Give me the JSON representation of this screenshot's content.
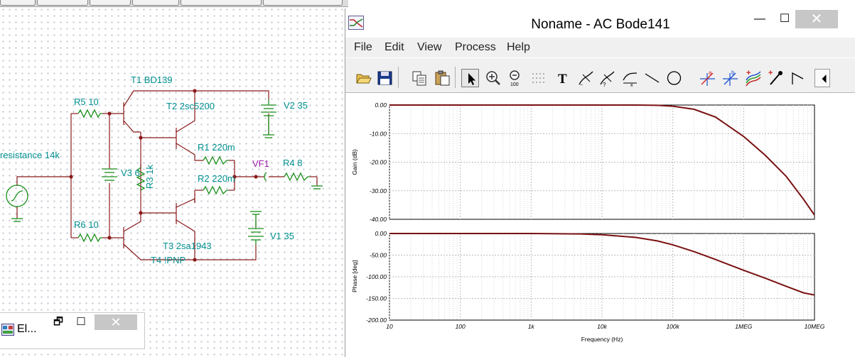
{
  "schematic": {
    "labels": {
      "t1": "T1 BD139",
      "t2": "T2 2sc5200",
      "t3": "T3 2sa1943",
      "t4": "T4 !PNP",
      "r1": "R1 220m",
      "r2": "R2 220m",
      "r3": "R3 1k",
      "r4": "R4 8",
      "r5": "R5 10",
      "r6": "R6 10",
      "v1": "V1 35",
      "v2": "V2 35",
      "v3": "V3 6",
      "vf1": "VF1",
      "source": "resistance 14k"
    },
    "minimized_window": {
      "title": "El...",
      "restore": "🗗",
      "maximize": "☐",
      "close": "✕"
    }
  },
  "bode_window": {
    "title": "Noname - AC Bode141",
    "controls": {
      "minimize": "—",
      "maximize": "☐",
      "close": "✕"
    },
    "menu": [
      "File",
      "Edit",
      "View",
      "Process",
      "Help"
    ],
    "toolbar_icons": [
      "open-icon",
      "save-icon",
      "copy-icon",
      "paste-icon",
      "pointer-icon",
      "zoom-in-icon",
      "zoom-100-icon",
      "grid-icon",
      "text-icon",
      "tilde-marker-icon",
      "query-marker-icon",
      "formula-icon",
      "line-icon",
      "circle-icon",
      "cursor-a-icon",
      "cursor-b-icon",
      "curve-add-icon",
      "probe-icon",
      "pulse-icon",
      "scroll-left-icon"
    ]
  },
  "chart_data": [
    {
      "type": "line",
      "title": "",
      "xlabel": "",
      "ylabel": "Gain (dB)",
      "xscale": "log",
      "xlim": [
        10,
        10000000
      ],
      "ylim": [
        -40,
        0
      ],
      "yticks": [
        "0.00",
        "-10.00",
        "-20.00",
        "-30.00",
        "-40.00"
      ],
      "grid": true,
      "line_color": "#7a1111",
      "x": [
        10,
        100,
        1000,
        10000,
        30000,
        60000,
        100000,
        200000,
        400000,
        1000000,
        2000000,
        4000000,
        7000000,
        10000000
      ],
      "values": [
        0,
        0,
        0,
        0,
        0,
        -0.1,
        -0.4,
        -1.5,
        -4.2,
        -11,
        -17.5,
        -25,
        -33,
        -38.5
      ]
    },
    {
      "type": "line",
      "title": "",
      "xlabel": "Frequency (Hz)",
      "ylabel": "Phase [deg]",
      "xscale": "log",
      "xlim": [
        10,
        10000000
      ],
      "ylim": [
        -200,
        0
      ],
      "yticks": [
        "0.00",
        "-50.00",
        "-100.00",
        "-150.00",
        "-200.00"
      ],
      "xticks": [
        "10",
        "100",
        "1k",
        "10k",
        "100k",
        "1MEG",
        "10MEG"
      ],
      "grid": true,
      "line_color": "#7a1111",
      "x": [
        10,
        100,
        1000,
        5000,
        10000,
        30000,
        60000,
        100000,
        200000,
        400000,
        1000000,
        2000000,
        4000000,
        7000000,
        10000000
      ],
      "values": [
        0,
        0,
        0,
        -1,
        -3,
        -9,
        -17,
        -26,
        -42,
        -60,
        -85,
        -103,
        -122,
        -137,
        -142
      ]
    }
  ]
}
